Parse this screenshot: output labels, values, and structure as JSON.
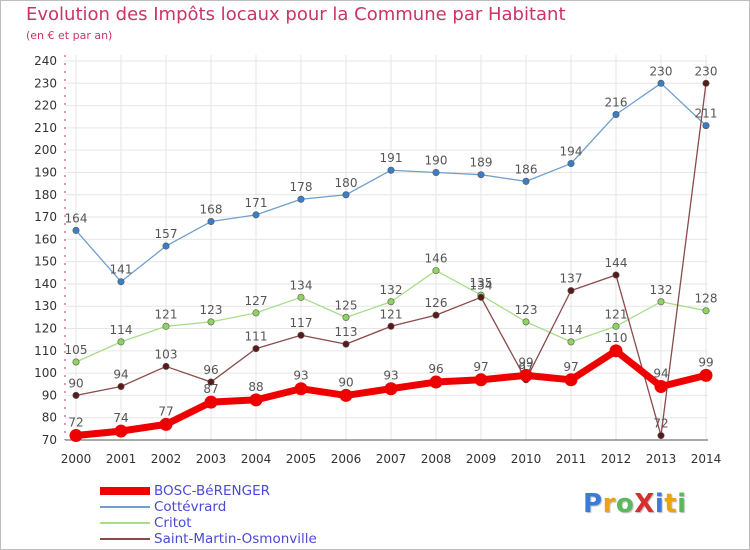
{
  "title": "Evolution des Impôts locaux pour la Commune par Habitant",
  "subtitle": "(en € et par an)",
  "logo": {
    "text": "Proxiti",
    "letters": [
      {
        "ch": "P",
        "color": "#3a7bd5"
      },
      {
        "ch": "r",
        "color": "#e8a317"
      },
      {
        "ch": "o",
        "color": "#5cb85c"
      },
      {
        "ch": "X",
        "color": "#d62f2f"
      },
      {
        "ch": "i",
        "color": "#3a7bd5"
      },
      {
        "ch": "t",
        "color": "#e8a317"
      },
      {
        "ch": "i",
        "color": "#5cb85c"
      }
    ]
  },
  "chart_data": {
    "type": "line",
    "title": "Evolution des Impôts locaux pour la Commune par Habitant",
    "ylabel": "(en € et par an)",
    "xlabel": "",
    "x": [
      "2000",
      "2001",
      "2002",
      "2003",
      "2004",
      "2005",
      "2006",
      "2007",
      "2008",
      "2009",
      "2010",
      "2011",
      "2012",
      "2013",
      "2014"
    ],
    "ylim": [
      70,
      240
    ],
    "yticks": [
      70,
      80,
      90,
      100,
      110,
      120,
      130,
      140,
      150,
      160,
      170,
      180,
      190,
      200,
      210,
      220,
      230,
      240
    ],
    "grid": true,
    "series": [
      {
        "name": "BOSC-BéRENGER",
        "color": "#ee0000",
        "style": "thick",
        "values": [
          72,
          74,
          77,
          87,
          88,
          93,
          90,
          93,
          96,
          97,
          99,
          97,
          110,
          94,
          99
        ],
        "labels": [
          "72",
          "74",
          "77",
          "87",
          "88",
          "93",
          "90",
          "93",
          "96",
          "97",
          "99",
          "97",
          "110",
          "94",
          "99"
        ]
      },
      {
        "name": "Cottévrard",
        "color": "#6f9fcf",
        "marker": "#3a7ec8",
        "style": "thin",
        "values": [
          164,
          141,
          157,
          168,
          171,
          178,
          180,
          191,
          190,
          189,
          186,
          194,
          216,
          230,
          211
        ],
        "labels": [
          "164",
          "141",
          "157",
          "168",
          "171",
          "178",
          "180",
          "191",
          "190",
          "189",
          "186",
          "194",
          "216",
          "230",
          "211"
        ]
      },
      {
        "name": "Critot",
        "color": "#a8dd8a",
        "marker": "#8fd45e",
        "style": "thin",
        "values": [
          105,
          114,
          121,
          123,
          127,
          134,
          125,
          132,
          146,
          135,
          123,
          114,
          121,
          132,
          128
        ],
        "labels": [
          "105",
          "114",
          "121",
          "123",
          "127",
          "134",
          "125",
          "132",
          "146",
          "135",
          "123",
          "114",
          "121",
          "132",
          "128"
        ]
      },
      {
        "name": "Saint-Martin-Osmonville",
        "color": "#8a4a4a",
        "marker": "#5a1a1a",
        "style": "thin",
        "values": [
          90,
          94,
          103,
          96,
          111,
          117,
          113,
          121,
          126,
          134,
          97,
          137,
          144,
          72,
          230
        ],
        "labels": [
          "90",
          "94",
          "103",
          "96",
          "111",
          "117",
          "113",
          "121",
          "126",
          "134",
          "97",
          "137",
          "144",
          "72",
          "230"
        ]
      }
    ],
    "legend_position": "bottom-left"
  }
}
